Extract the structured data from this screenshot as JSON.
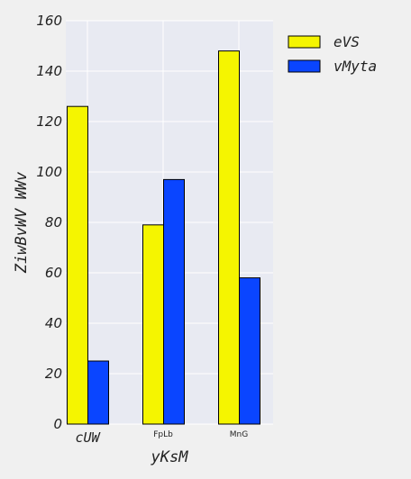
{
  "chart_data": {
    "type": "bar",
    "categories": [
      "cUW",
      "FpLb",
      "MnG"
    ],
    "series": [
      {
        "name": "eVS",
        "values": [
          126,
          79,
          148
        ],
        "color": "#f5f500"
      },
      {
        "name": "vMyta",
        "values": [
          25,
          97,
          58
        ],
        "color": "#0a45ff"
      }
    ],
    "xlabel": "yKsM",
    "ylabel": "ZiwBvWV WWv",
    "ylim": [
      0,
      160
    ],
    "yticks": [
      0,
      20,
      40,
      60,
      80,
      100,
      120,
      140,
      160
    ],
    "grid": true,
    "legend_position": "top-right",
    "plot_background": "#e8eaf2",
    "grid_color": "#ffffff"
  }
}
